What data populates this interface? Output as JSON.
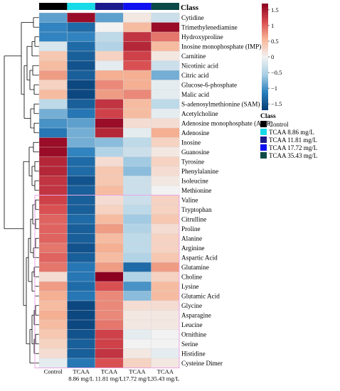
{
  "chart_data": {
    "type": "heatmap",
    "class_bar_label": "Class",
    "columns": [
      "Control",
      "TCAA 8.86 mg/L",
      "TCAA 11.81 mg/L",
      "TCAA 17.72 mg/L",
      "TCAA 35.43 mg/L"
    ],
    "column_label_lines": [
      [
        "Control"
      ],
      [
        "TCAA",
        "8.86 mg/L"
      ],
      [
        "TCAA",
        "11.81 mg/L"
      ],
      [
        "TCAA",
        "17.72 mg/L"
      ],
      [
        "TCAA",
        "35.43 mg/L"
      ]
    ],
    "rows": [
      "Cytidine",
      "Trimethylenediamine",
      "Hydroxyproline",
      "Inosine monophosphate (IMP)",
      "Carnitine",
      "Nicotinic acid",
      "Citric acid",
      "Glucose-6-phosphate",
      "Malic acid",
      "S-adenosylmethionine (SAM)",
      "Acetylcholine",
      "Adenosine monophosphate (AMP)",
      "Adenosine",
      "Inosine",
      "Guanosine",
      "Tyrosine",
      "Phenylalanine",
      "Isoleucine",
      "Methionine",
      "Valine",
      "Tryptophan",
      "Citrulline",
      "Proline",
      "Alanine",
      "Arginine",
      "Aspartic Acid",
      "Glutamine",
      "Choline",
      "Lysine",
      "Glutamic Acid",
      "Glycine",
      "Asparagine",
      "Leucine",
      "Ornithine",
      "Serine",
      "Histidine",
      "Cysteine Dimer"
    ],
    "values": [
      [
        -0.9,
        1.6,
        -0.9,
        0.1,
        -0.3
      ],
      [
        -1.1,
        -1.3,
        0.0,
        0.5,
        1.6
      ],
      [
        -1.1,
        -1.1,
        -0.4,
        1.3,
        0.9
      ],
      [
        -0.2,
        -1.3,
        -0.5,
        1.4,
        0.5
      ],
      [
        0.4,
        -1.4,
        0.3,
        1.2,
        0.1
      ],
      [
        0.5,
        -1.5,
        -0.1,
        1.1,
        -0.3
      ],
      [
        0.7,
        -1.4,
        0.6,
        0.6,
        -0.8
      ],
      [
        0.3,
        -1.6,
        0.8,
        0.6,
        -0.1
      ],
      [
        0.5,
        -1.6,
        0.7,
        0.8,
        -0.1
      ],
      [
        -0.4,
        -1.4,
        1.3,
        0.5,
        -0.4
      ],
      [
        -0.8,
        -1.2,
        1.2,
        0.5,
        -0.1
      ],
      [
        -1.0,
        -0.9,
        1.6,
        0.2,
        0.2
      ],
      [
        -1.2,
        -0.8,
        1.4,
        -0.1,
        0.6
      ],
      [
        1.6,
        -0.8,
        -0.7,
        -0.4,
        0.3
      ],
      [
        1.6,
        -1.1,
        -0.5,
        -0.3,
        0.1
      ],
      [
        1.4,
        -1.3,
        0.2,
        -0.6,
        0.3
      ],
      [
        1.4,
        -1.3,
        0.4,
        -0.7,
        0.2
      ],
      [
        1.3,
        -1.5,
        0.4,
        -0.3,
        0.1
      ],
      [
        1.3,
        -1.4,
        0.5,
        -0.3,
        0.0
      ],
      [
        1.2,
        -1.4,
        0.2,
        -0.3,
        0.3
      ],
      [
        1.1,
        -1.4,
        0.3,
        -0.4,
        0.3
      ],
      [
        1.0,
        -1.3,
        0.5,
        -0.6,
        0.4
      ],
      [
        1.0,
        -1.4,
        0.7,
        -0.5,
        0.2
      ],
      [
        1.0,
        -1.4,
        0.5,
        -0.4,
        0.3
      ],
      [
        0.9,
        -1.5,
        0.6,
        -0.4,
        0.3
      ],
      [
        1.0,
        -1.4,
        0.5,
        -0.5,
        0.4
      ],
      [
        0.9,
        -1.2,
        0.7,
        -1.3,
        0.7
      ],
      [
        0.2,
        -1.2,
        1.7,
        -0.5,
        0.3
      ],
      [
        0.7,
        -1.3,
        1.1,
        -1.0,
        0.5
      ],
      [
        0.6,
        -1.2,
        0.8,
        -0.7,
        0.5
      ],
      [
        0.5,
        -1.6,
        0.8,
        0.2,
        0.2
      ],
      [
        0.6,
        -1.6,
        0.8,
        0.1,
        0.1
      ],
      [
        0.5,
        -1.6,
        0.9,
        0.1,
        0.1
      ],
      [
        0.4,
        -1.5,
        1.2,
        -0.1,
        0.0
      ],
      [
        0.3,
        -1.4,
        1.2,
        0.0,
        0.0
      ],
      [
        0.2,
        -1.4,
        1.3,
        0.1,
        -0.1
      ],
      [
        -0.1,
        -1.2,
        1.1,
        0.3,
        0.1
      ]
    ],
    "color_scale": {
      "ticks": [
        1.5,
        1,
        0.5,
        0,
        -0.5,
        -1,
        -1.5
      ],
      "tick_labels": [
        "1.5",
        "1",
        "0.5",
        "0",
        "−0.5",
        "−1",
        "−1.5"
      ],
      "range": [
        -1.7,
        1.7
      ],
      "colors": [
        "#063b73",
        "#2a7fbd",
        "#a9cfe4",
        "#f2f2f2",
        "#f7b596",
        "#d74a4f",
        "#8c0020"
      ]
    },
    "legend": {
      "title": "Class",
      "entries": [
        {
          "label": "Control",
          "color": "#000000"
        },
        {
          "label": "TCAA 8.86 mg/L",
          "color": "#17dbe8"
        },
        {
          "label": "TCAA 11.81 mg/L",
          "color": "#1a1a8c"
        },
        {
          "label": "TCAA 17.72 mg/L",
          "color": "#1010f0"
        },
        {
          "label": "TCAA 35.43 mg/L",
          "color": "#0c4a47"
        }
      ]
    }
  }
}
